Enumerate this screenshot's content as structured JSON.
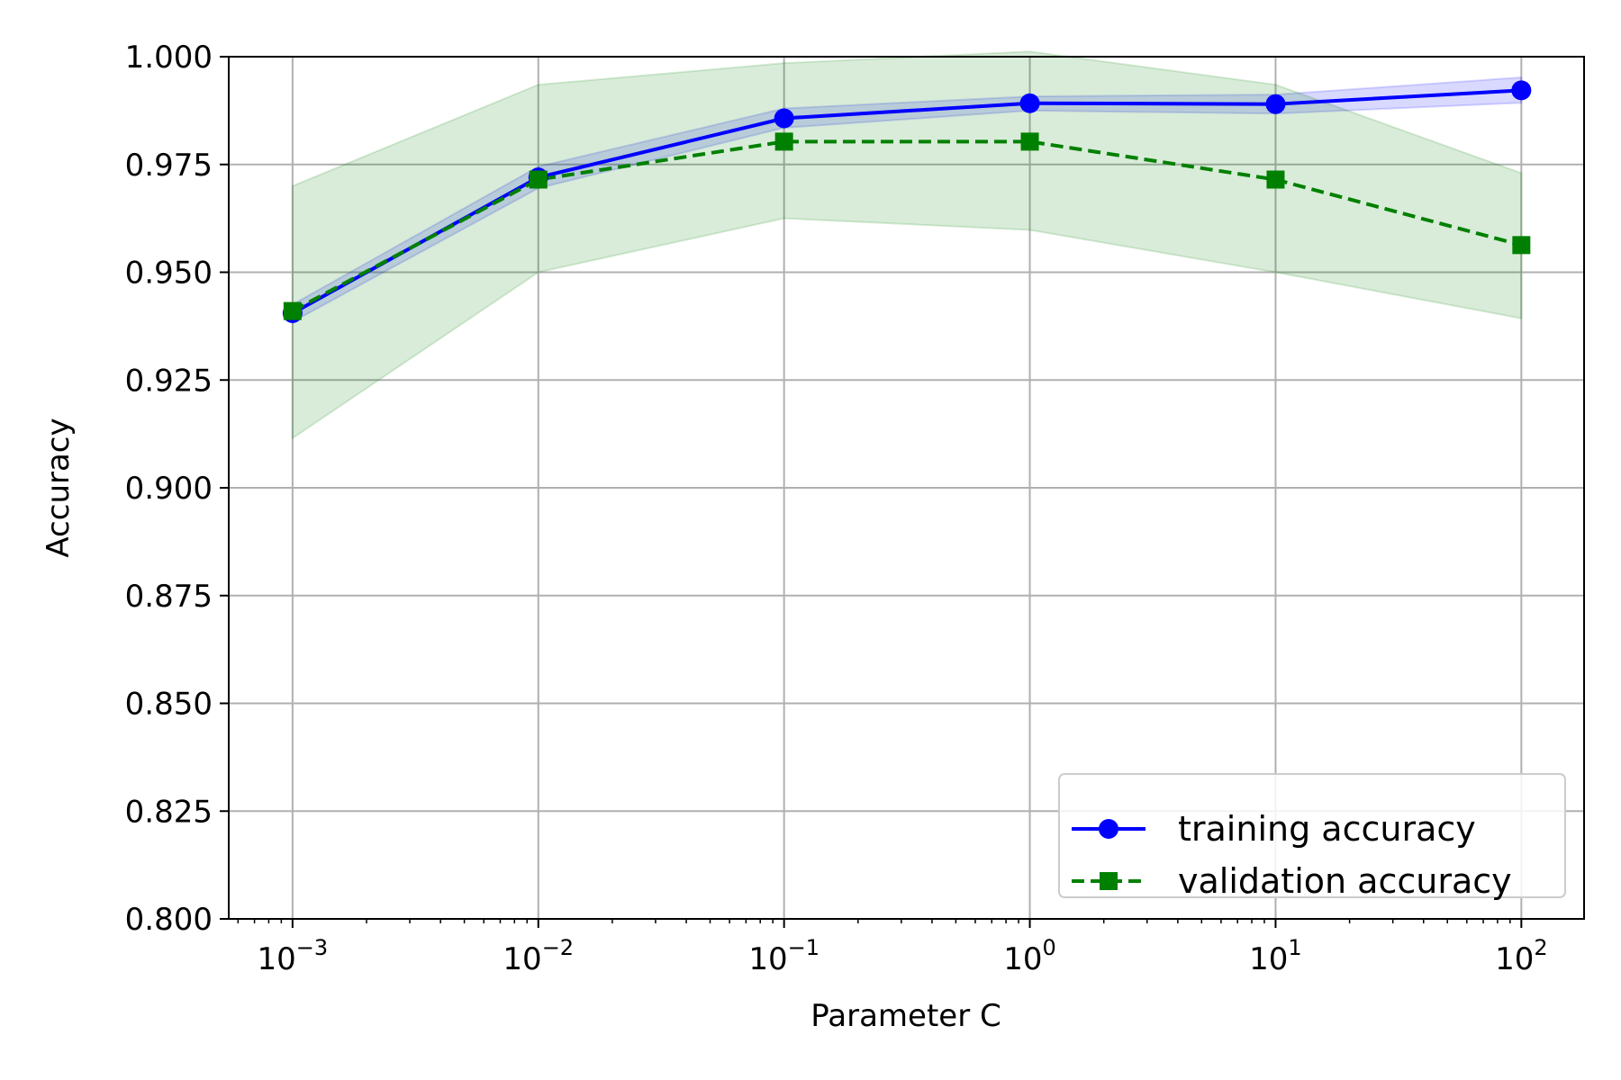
{
  "chart_data": {
    "type": "line",
    "xscale": "log",
    "xlabel": "Parameter C",
    "ylabel": "Accuracy",
    "x": [
      0.001,
      0.01,
      0.1,
      1,
      10,
      100
    ],
    "xlim": [
      0.00055,
      180
    ],
    "ylim": [
      0.8,
      1.0
    ],
    "x_ticks": [
      {
        "value": 0.001,
        "base": "10",
        "exp": "−3"
      },
      {
        "value": 0.01,
        "base": "10",
        "exp": "−2"
      },
      {
        "value": 0.1,
        "base": "10",
        "exp": "−1"
      },
      {
        "value": 1,
        "base": "10",
        "exp": "0"
      },
      {
        "value": 10,
        "base": "10",
        "exp": "1"
      },
      {
        "value": 100,
        "base": "10",
        "exp": "2"
      }
    ],
    "y_ticks": [
      {
        "value": 0.8,
        "label": "0.800"
      },
      {
        "value": 0.825,
        "label": "0.825"
      },
      {
        "value": 0.85,
        "label": "0.850"
      },
      {
        "value": 0.875,
        "label": "0.875"
      },
      {
        "value": 0.9,
        "label": "0.900"
      },
      {
        "value": 0.925,
        "label": "0.925"
      },
      {
        "value": 0.95,
        "label": "0.950"
      },
      {
        "value": 0.975,
        "label": "0.975"
      },
      {
        "value": 1.0,
        "label": "1.000"
      }
    ],
    "grid": true,
    "legend_position": "lower-right",
    "series": [
      {
        "name": "training accuracy",
        "color": "#0000ff",
        "style": "solid",
        "marker": "circle",
        "values": [
          0.9405,
          0.972,
          0.9857,
          0.9892,
          0.989,
          0.9922
        ],
        "band_lower": [
          0.9385,
          0.9695,
          0.9835,
          0.9875,
          0.9868,
          0.9893
        ],
        "band_upper": [
          0.9425,
          0.9745,
          0.988,
          0.9908,
          0.9912,
          0.9952
        ]
      },
      {
        "name": "validation accuracy",
        "color": "#008000",
        "style": "dashed",
        "marker": "square",
        "values": [
          0.941,
          0.9715,
          0.9803,
          0.9803,
          0.9715,
          0.9563
        ],
        "band_lower": [
          0.9115,
          0.95,
          0.9625,
          0.9598,
          0.95,
          0.9393
        ],
        "band_upper": [
          0.97,
          0.9935,
          0.9985,
          1.0012,
          0.9935,
          0.973
        ]
      }
    ]
  }
}
